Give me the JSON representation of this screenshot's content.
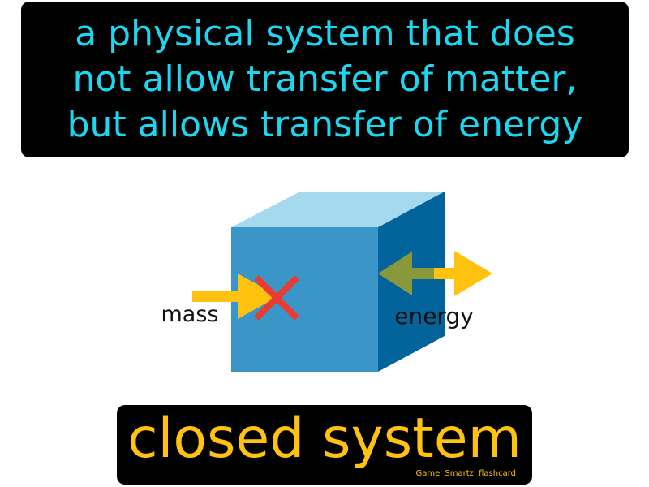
{
  "definition": {
    "lines": [
      "a physical system that does",
      "not allow transfer of matter,",
      "but allows transfer of energy"
    ]
  },
  "diagram": {
    "labels": {
      "mass": "mass",
      "energy": "energy"
    },
    "icons": {
      "cube": "cube-icon",
      "blocked": "x-icon",
      "arrow": "arrow-icon"
    },
    "colors": {
      "cube_front": "#3b96c8",
      "cube_top": "#a4d9ee",
      "cube_side": "#03649c",
      "arrow": "#ffc20e",
      "arrow_inside": "#8a983c",
      "cross": "#ea3a34"
    }
  },
  "term": {
    "label": "closed system"
  },
  "branding": {
    "text": "Game Smartz flashcard"
  },
  "colors": {
    "definition_text": "#1bd7f0",
    "term_text": "#ffc20e",
    "box_background": "#000000"
  }
}
